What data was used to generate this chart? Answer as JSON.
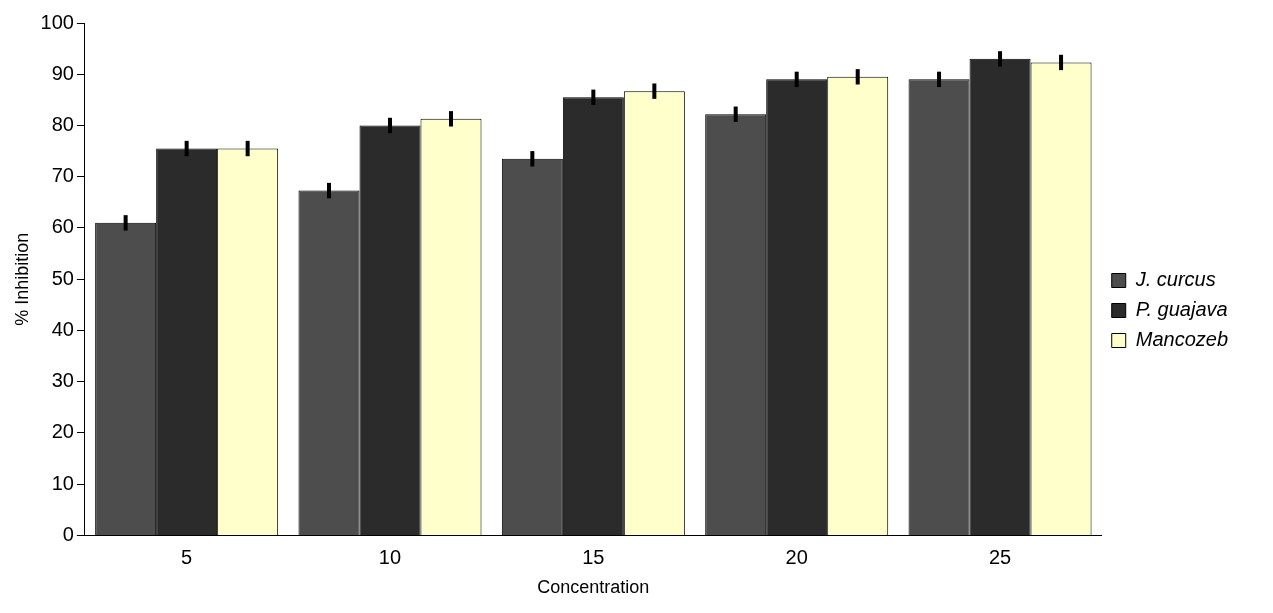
{
  "chart_data": {
    "type": "bar",
    "xlabel": "Concentration",
    "ylabel": "% Inhibition",
    "categories": [
      "5",
      "10",
      "15",
      "20",
      "25"
    ],
    "series": [
      {
        "name": "J. curcus",
        "color": "#4d4d4d",
        "values": [
          61,
          67.3,
          73.5,
          82.2,
          89
        ],
        "errors": [
          1.5,
          1.5,
          1.5,
          1.5,
          1.5
        ]
      },
      {
        "name": "P. guajava",
        "color": "#2b2b2b",
        "values": [
          75.5,
          80,
          85.5,
          89,
          93
        ],
        "errors": [
          1.5,
          1.5,
          1.5,
          1.5,
          1.5
        ]
      },
      {
        "name": "Mancozeb",
        "color": "#ffffcc",
        "values": [
          75.5,
          81.3,
          86.7,
          89.5,
          92.3
        ],
        "errors": [
          1.5,
          1.5,
          1.5,
          1.5,
          1.5
        ]
      }
    ],
    "ylim": [
      0,
      100
    ],
    "yticks": [
      0,
      10,
      20,
      30,
      40,
      50,
      60,
      70,
      80,
      90,
      100
    ],
    "grid": false,
    "legend": "right"
  }
}
